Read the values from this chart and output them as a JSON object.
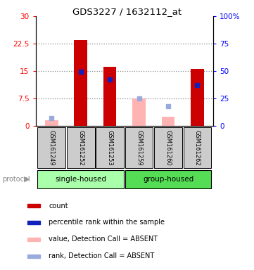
{
  "title": "GDS3227 / 1632112_at",
  "samples": [
    "GSM161249",
    "GSM161252",
    "GSM161253",
    "GSM161259",
    "GSM161260",
    "GSM161262"
  ],
  "red_values": [
    1.5,
    23.5,
    16.2,
    7.5,
    2.5,
    15.5
  ],
  "blue_values_pct": [
    7.0,
    49.0,
    42.0,
    25.0,
    18.0,
    37.0
  ],
  "absent": [
    true,
    false,
    false,
    true,
    true,
    false
  ],
  "groups": [
    {
      "label": "single-housed",
      "start": 0,
      "end": 2
    },
    {
      "label": "group-housed",
      "start": 3,
      "end": 5
    }
  ],
  "ylim_left": [
    0,
    30
  ],
  "ylim_right": [
    0,
    100
  ],
  "yticks_left": [
    0,
    7.5,
    15,
    22.5,
    30
  ],
  "ytick_labels_left": [
    "0",
    "7.5",
    "15",
    "22.5",
    "30"
  ],
  "yticks_right": [
    0,
    25,
    50,
    75,
    100
  ],
  "ytick_labels_right": [
    "0",
    "25",
    "50",
    "75",
    "100%"
  ],
  "color_red_present": "#cc0000",
  "color_red_absent": "#ffb3b3",
  "color_blue_present": "#1122bb",
  "color_blue_absent": "#99aadd",
  "color_grid": "#888888",
  "color_group1_bg": "#aaffaa",
  "color_group2_bg": "#55dd55",
  "color_xticklabel_bg": "#cccccc",
  "legend_items": [
    {
      "color": "#cc0000",
      "label": "count",
      "shape": "square"
    },
    {
      "color": "#1122bb",
      "label": "percentile rank within the sample",
      "shape": "square"
    },
    {
      "color": "#ffb3b3",
      "label": "value, Detection Call = ABSENT",
      "shape": "square"
    },
    {
      "color": "#99aadd",
      "label": "rank, Detection Call = ABSENT",
      "shape": "square"
    }
  ]
}
